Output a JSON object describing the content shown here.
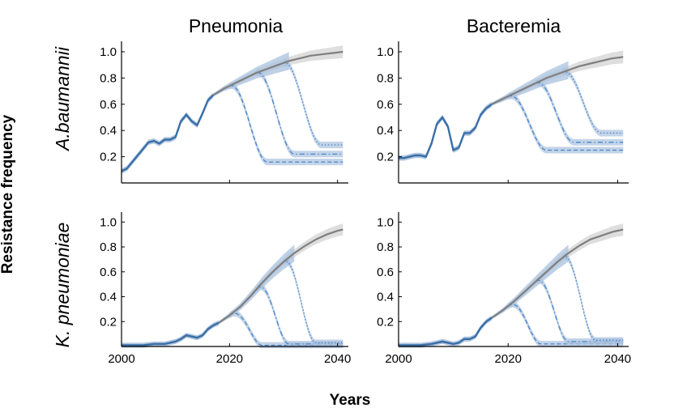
{
  "figure": {
    "ylabel": "Resistance frequency",
    "xlabel": "Years",
    "col_titles": [
      "Pneumonia",
      "Bacteremia"
    ],
    "row_titles": [
      "A.baumannii",
      "K. pneumoniae"
    ]
  },
  "colors": {
    "history": "#3a6ea5",
    "projection": "#7f7f7f",
    "band_blue": "#a9c1de",
    "band_gray": "#d6d6d6",
    "intervention": "#4a88c7"
  },
  "chart_data": [
    {
      "type": "line",
      "title": "Pneumonia",
      "row": "A.baumannii",
      "xlim": [
        2000,
        2042
      ],
      "ylim": [
        0,
        1.08
      ],
      "xticks": [
        2000,
        2020,
        2040
      ],
      "yticks": [
        0.2,
        0.4,
        0.6,
        0.8,
        1.0
      ],
      "ytick_labels": [
        "0.2",
        "0.4",
        "0.6",
        "0.8",
        "1.0"
      ],
      "history": [
        [
          2000,
          0.09
        ],
        [
          2001,
          0.11
        ],
        [
          2002,
          0.16
        ],
        [
          2003,
          0.21
        ],
        [
          2004,
          0.26
        ],
        [
          2005,
          0.31
        ],
        [
          2006,
          0.32
        ],
        [
          2007,
          0.3
        ],
        [
          2008,
          0.33
        ],
        [
          2009,
          0.33
        ],
        [
          2010,
          0.35
        ],
        [
          2011,
          0.47
        ],
        [
          2012,
          0.52
        ],
        [
          2013,
          0.47
        ],
        [
          2014,
          0.44
        ],
        [
          2015,
          0.53
        ],
        [
          2016,
          0.63
        ],
        [
          2017,
          0.67
        ]
      ],
      "projection": [
        [
          2017,
          0.67
        ],
        [
          2019,
          0.72
        ],
        [
          2021,
          0.76
        ],
        [
          2023,
          0.8
        ],
        [
          2025,
          0.84
        ],
        [
          2027,
          0.87
        ],
        [
          2029,
          0.9
        ],
        [
          2031,
          0.93
        ],
        [
          2033,
          0.95
        ],
        [
          2035,
          0.97
        ],
        [
          2037,
          0.98
        ],
        [
          2039,
          0.99
        ],
        [
          2041,
          1.0
        ]
      ],
      "interventions": [
        {
          "start": 2020,
          "end": 2027,
          "plateau": 0.16,
          "style": "dashed"
        },
        {
          "start": 2025,
          "end": 2032,
          "plateau": 0.22,
          "style": "dashdot"
        },
        {
          "start": 2030,
          "end": 2037,
          "plateau": 0.29,
          "style": "dotted"
        }
      ]
    },
    {
      "type": "line",
      "title": "Bacteremia",
      "row": "A.baumannii",
      "xlim": [
        2000,
        2042
      ],
      "ylim": [
        0,
        1.08
      ],
      "xticks": [
        2000,
        2020,
        2040
      ],
      "yticks": [
        0.2,
        0.4,
        0.6,
        0.8,
        1.0
      ],
      "ytick_labels": [
        "0.2",
        "0.4",
        "0.6",
        "0.8",
        "1.0"
      ],
      "history": [
        [
          2000,
          0.19
        ],
        [
          2001,
          0.19
        ],
        [
          2002,
          0.2
        ],
        [
          2003,
          0.21
        ],
        [
          2004,
          0.21
        ],
        [
          2005,
          0.2
        ],
        [
          2006,
          0.3
        ],
        [
          2007,
          0.45
        ],
        [
          2008,
          0.5
        ],
        [
          2009,
          0.43
        ],
        [
          2010,
          0.25
        ],
        [
          2011,
          0.27
        ],
        [
          2012,
          0.38
        ],
        [
          2013,
          0.38
        ],
        [
          2014,
          0.42
        ],
        [
          2015,
          0.52
        ],
        [
          2016,
          0.57
        ],
        [
          2017,
          0.6
        ]
      ],
      "projection": [
        [
          2017,
          0.6
        ],
        [
          2019,
          0.64
        ],
        [
          2021,
          0.68
        ],
        [
          2023,
          0.72
        ],
        [
          2025,
          0.76
        ],
        [
          2027,
          0.8
        ],
        [
          2029,
          0.83
        ],
        [
          2031,
          0.86
        ],
        [
          2033,
          0.89
        ],
        [
          2035,
          0.91
        ],
        [
          2037,
          0.93
        ],
        [
          2039,
          0.95
        ],
        [
          2041,
          0.96
        ]
      ],
      "interventions": [
        {
          "start": 2020,
          "end": 2027,
          "plateau": 0.25,
          "style": "dashed"
        },
        {
          "start": 2025,
          "end": 2032,
          "plateau": 0.31,
          "style": "dashdot"
        },
        {
          "start": 2030,
          "end": 2037,
          "plateau": 0.38,
          "style": "dotted"
        }
      ]
    },
    {
      "type": "line",
      "title": "Pneumonia",
      "row": "K. pneumoniae",
      "xlim": [
        2000,
        2042
      ],
      "ylim": [
        0,
        1.08
      ],
      "xticks": [
        2000,
        2020,
        2040
      ],
      "yticks": [
        0.2,
        0.4,
        0.6,
        0.8,
        1.0
      ],
      "ytick_labels": [
        "0.2",
        "0.4",
        "0.6",
        "0.8",
        "1.0"
      ],
      "xtick_labels": [
        "2000",
        "2020",
        "2040"
      ],
      "history": [
        [
          2000,
          0.01
        ],
        [
          2002,
          0.01
        ],
        [
          2004,
          0.01
        ],
        [
          2006,
          0.02
        ],
        [
          2008,
          0.02
        ],
        [
          2010,
          0.04
        ],
        [
          2011,
          0.06
        ],
        [
          2012,
          0.09
        ],
        [
          2013,
          0.08
        ],
        [
          2014,
          0.07
        ],
        [
          2015,
          0.09
        ],
        [
          2016,
          0.14
        ],
        [
          2017,
          0.17
        ],
        [
          2018,
          0.19
        ]
      ],
      "projection": [
        [
          2018,
          0.19
        ],
        [
          2020,
          0.25
        ],
        [
          2022,
          0.32
        ],
        [
          2024,
          0.41
        ],
        [
          2026,
          0.51
        ],
        [
          2028,
          0.6
        ],
        [
          2030,
          0.68
        ],
        [
          2032,
          0.75
        ],
        [
          2034,
          0.81
        ],
        [
          2036,
          0.86
        ],
        [
          2038,
          0.9
        ],
        [
          2040,
          0.93
        ],
        [
          2041,
          0.94
        ]
      ],
      "interventions": [
        {
          "start": 2020,
          "end": 2026,
          "plateau": 0.01,
          "style": "dashed"
        },
        {
          "start": 2025,
          "end": 2031,
          "plateau": 0.02,
          "style": "dashdot"
        },
        {
          "start": 2030,
          "end": 2036,
          "plateau": 0.03,
          "style": "dotted"
        }
      ]
    },
    {
      "type": "line",
      "title": "Bacteremia",
      "row": "K. pneumoniae",
      "xlim": [
        2000,
        2042
      ],
      "ylim": [
        0,
        1.08
      ],
      "xticks": [
        2000,
        2020,
        2040
      ],
      "yticks": [
        0.2,
        0.4,
        0.6,
        0.8,
        1.0
      ],
      "ytick_labels": [
        "0.2",
        "0.4",
        "0.6",
        "0.8",
        "1.0"
      ],
      "xtick_labels": [
        "2000",
        "2020",
        "2040"
      ],
      "history": [
        [
          2000,
          0.01
        ],
        [
          2002,
          0.01
        ],
        [
          2004,
          0.01
        ],
        [
          2006,
          0.02
        ],
        [
          2008,
          0.04
        ],
        [
          2009,
          0.03
        ],
        [
          2010,
          0.02
        ],
        [
          2011,
          0.03
        ],
        [
          2012,
          0.06
        ],
        [
          2013,
          0.06
        ],
        [
          2014,
          0.08
        ],
        [
          2015,
          0.15
        ],
        [
          2016,
          0.2
        ],
        [
          2017,
          0.23
        ]
      ],
      "projection": [
        [
          2017,
          0.23
        ],
        [
          2019,
          0.29
        ],
        [
          2021,
          0.36
        ],
        [
          2023,
          0.44
        ],
        [
          2025,
          0.52
        ],
        [
          2027,
          0.6
        ],
        [
          2029,
          0.68
        ],
        [
          2031,
          0.75
        ],
        [
          2033,
          0.81
        ],
        [
          2035,
          0.86
        ],
        [
          2037,
          0.89
        ],
        [
          2039,
          0.92
        ],
        [
          2041,
          0.94
        ]
      ],
      "interventions": [
        {
          "start": 2020,
          "end": 2026,
          "plateau": 0.02,
          "style": "dashed"
        },
        {
          "start": 2025,
          "end": 2031,
          "plateau": 0.04,
          "style": "dashdot"
        },
        {
          "start": 2030,
          "end": 2036,
          "plateau": 0.05,
          "style": "dotted"
        }
      ]
    }
  ]
}
